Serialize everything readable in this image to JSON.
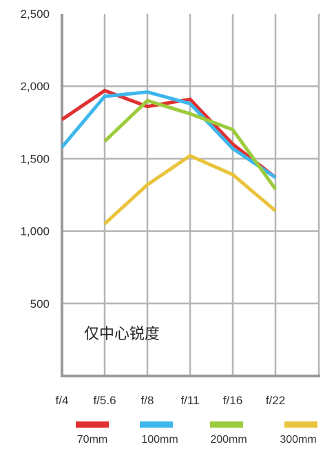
{
  "chart_data": {
    "type": "line",
    "categories": [
      "f/4",
      "f/5.6",
      "f/8",
      "f/11",
      "f/16",
      "f/22"
    ],
    "ylim": [
      0,
      2500
    ],
    "yticks": [
      {
        "value": 500,
        "label": "500"
      },
      {
        "value": 1000,
        "label": "1,000"
      },
      {
        "value": 1500,
        "label": "1,500"
      },
      {
        "value": 2000,
        "label": "2,000"
      },
      {
        "value": 2500,
        "label": "2,500"
      }
    ],
    "grid": true,
    "annotation": "仅中心锐度",
    "legend_position": "bottom",
    "series": [
      {
        "name": "70mm",
        "color": "#e03030",
        "values": [
          1770,
          1970,
          1860,
          1910,
          1600,
          1370
        ]
      },
      {
        "name": "100mm",
        "color": "#3db6ec",
        "values": [
          1580,
          1930,
          1960,
          1880,
          1570,
          1370
        ]
      },
      {
        "name": "200mm",
        "color": "#9ccb3c",
        "values": [
          null,
          1620,
          1900,
          1810,
          1700,
          1290
        ]
      },
      {
        "name": "300mm",
        "color": "#e9c43c",
        "values": [
          null,
          1050,
          1320,
          1520,
          1390,
          1140
        ]
      }
    ]
  }
}
